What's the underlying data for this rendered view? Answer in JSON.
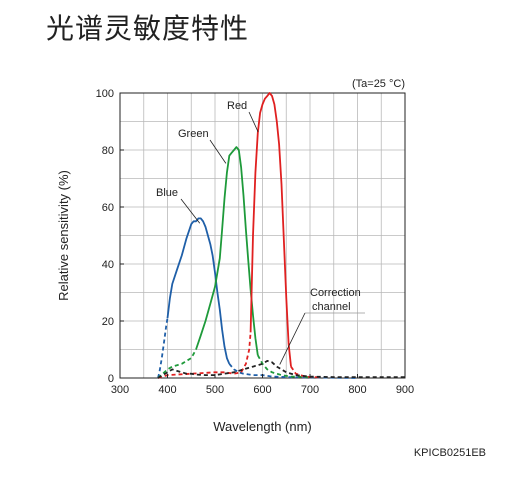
{
  "page": {
    "title": "光谱灵敏度特性",
    "doc_code": "KPICB0251EB"
  },
  "chart_data": {
    "type": "line",
    "title": "",
    "condition_note": "(Ta=25 °C)",
    "xlabel": "Wavelength (nm)",
    "ylabel": "Relative sensitivity (%)",
    "xlim": [
      300,
      900
    ],
    "ylim": [
      0,
      100
    ],
    "x_ticks": [
      300,
      400,
      500,
      600,
      700,
      800,
      900
    ],
    "y_ticks": [
      0,
      20,
      40,
      60,
      80,
      100
    ],
    "grid": true,
    "series": [
      {
        "name": "Blue",
        "color": "#1f5fa8",
        "solid": [
          [
            400,
            21
          ],
          [
            405,
            28
          ],
          [
            410,
            33
          ],
          [
            420,
            38
          ],
          [
            430,
            43
          ],
          [
            440,
            49
          ],
          [
            450,
            54
          ],
          [
            455,
            55
          ],
          [
            460,
            55
          ],
          [
            465,
            56
          ],
          [
            470,
            56
          ],
          [
            475,
            55
          ],
          [
            480,
            53
          ],
          [
            485,
            50
          ],
          [
            490,
            47
          ],
          [
            495,
            43
          ],
          [
            500,
            37
          ],
          [
            505,
            30
          ],
          [
            510,
            24
          ],
          [
            515,
            17
          ],
          [
            520,
            11
          ],
          [
            525,
            7
          ],
          [
            530,
            5
          ]
        ],
        "dashed": [
          [
            380,
            0
          ],
          [
            383,
            2
          ],
          [
            388,
            7
          ],
          [
            393,
            13
          ],
          [
            397,
            18
          ],
          [
            400,
            21
          ],
          [
            530,
            5
          ],
          [
            540,
            3
          ],
          [
            550,
            2
          ],
          [
            560,
            1.5
          ],
          [
            580,
            1
          ],
          [
            600,
            1
          ],
          [
            620,
            0.5
          ],
          [
            650,
            0.3
          ],
          [
            700,
            0.2
          ],
          [
            750,
            0.1
          ],
          [
            800,
            0
          ],
          [
            900,
            0
          ]
        ]
      },
      {
        "name": "Green",
        "color": "#1e9a3a",
        "solid": [
          [
            460,
            10
          ],
          [
            470,
            15
          ],
          [
            480,
            20
          ],
          [
            490,
            26
          ],
          [
            500,
            32
          ],
          [
            510,
            42
          ],
          [
            515,
            52
          ],
          [
            520,
            63
          ],
          [
            525,
            72
          ],
          [
            530,
            78
          ],
          [
            535,
            79
          ],
          [
            540,
            80
          ],
          [
            545,
            81
          ],
          [
            550,
            80
          ],
          [
            555,
            74
          ],
          [
            560,
            64
          ],
          [
            565,
            52
          ],
          [
            570,
            41
          ],
          [
            575,
            31
          ],
          [
            580,
            22
          ],
          [
            585,
            14
          ],
          [
            590,
            8
          ]
        ],
        "dashed": [
          [
            380,
            0
          ],
          [
            390,
            1.5
          ],
          [
            400,
            3
          ],
          [
            410,
            4
          ],
          [
            420,
            4.5
          ],
          [
            430,
            5
          ],
          [
            440,
            6
          ],
          [
            450,
            7
          ],
          [
            460,
            10
          ],
          [
            590,
            8
          ],
          [
            600,
            5
          ],
          [
            610,
            3
          ],
          [
            620,
            2
          ],
          [
            640,
            1
          ],
          [
            660,
            0.5
          ],
          [
            700,
            0.3
          ],
          [
            800,
            0
          ],
          [
            900,
            0
          ]
        ]
      },
      {
        "name": "Red",
        "color": "#e02020",
        "solid": [
          [
            575,
            16
          ],
          [
            580,
            50
          ],
          [
            585,
            72
          ],
          [
            590,
            86
          ],
          [
            595,
            93
          ],
          [
            600,
            96
          ],
          [
            605,
            98
          ],
          [
            610,
            99
          ],
          [
            615,
            100
          ],
          [
            620,
            99
          ],
          [
            625,
            96
          ],
          [
            630,
            90
          ],
          [
            635,
            82
          ],
          [
            640,
            68
          ],
          [
            645,
            48
          ],
          [
            650,
            28
          ],
          [
            655,
            12
          ],
          [
            660,
            4
          ]
        ],
        "dashed": [
          [
            380,
            0
          ],
          [
            400,
            1
          ],
          [
            450,
            1.5
          ],
          [
            500,
            2
          ],
          [
            520,
            2
          ],
          [
            540,
            1.5
          ],
          [
            555,
            2
          ],
          [
            565,
            5
          ],
          [
            572,
            10
          ],
          [
            575,
            16
          ],
          [
            660,
            4
          ],
          [
            670,
            1.5
          ],
          [
            690,
            0.5
          ],
          [
            720,
            0.2
          ],
          [
            800,
            0
          ],
          [
            900,
            0
          ]
        ]
      },
      {
        "name": "Correction channel",
        "label_lines": [
          "Correction",
          "channel"
        ],
        "color": "#222222",
        "solid": [],
        "dashed": [
          [
            380,
            0
          ],
          [
            390,
            1
          ],
          [
            400,
            2
          ],
          [
            410,
            3
          ],
          [
            420,
            2.5
          ],
          [
            430,
            2
          ],
          [
            440,
            1.5
          ],
          [
            450,
            1.5
          ],
          [
            460,
            1.2
          ],
          [
            480,
            1
          ],
          [
            500,
            1
          ],
          [
            520,
            1.5
          ],
          [
            540,
            2
          ],
          [
            560,
            3
          ],
          [
            580,
            4
          ],
          [
            600,
            5
          ],
          [
            610,
            6
          ],
          [
            620,
            5.5
          ],
          [
            630,
            4
          ],
          [
            640,
            3
          ],
          [
            650,
            2
          ],
          [
            670,
            1
          ],
          [
            700,
            0.5
          ],
          [
            750,
            0.3
          ],
          [
            800,
            0.3
          ],
          [
            850,
            0.3
          ],
          [
            900,
            0.3
          ]
        ]
      }
    ],
    "annotations": [
      {
        "series": "Blue",
        "text": "Blue",
        "anchor": [
          470,
          55
        ]
      },
      {
        "series": "Green",
        "text": "Green",
        "anchor": [
          525,
          76
        ]
      },
      {
        "series": "Red",
        "text": "Red",
        "anchor": [
          593,
          87
        ]
      },
      {
        "series": "Correction channel",
        "text": "Correction channel",
        "anchor": [
          630,
          4
        ]
      }
    ]
  }
}
